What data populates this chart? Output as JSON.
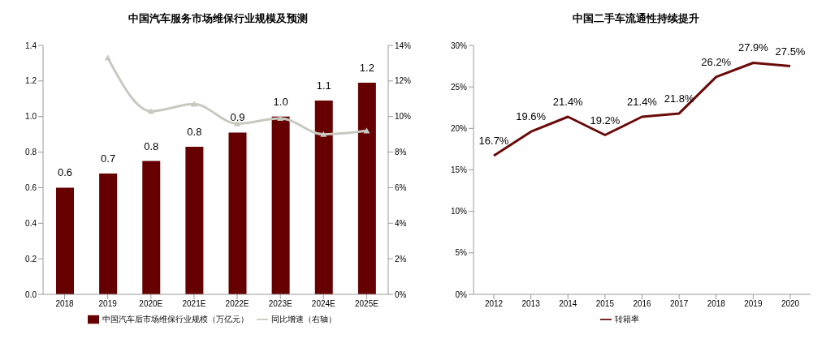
{
  "chart_data": [
    {
      "type": "bar",
      "title": "中国汽车服务市场维保行业规模及预测",
      "categories": [
        "2018",
        "2019",
        "2020E",
        "2021E",
        "2022E",
        "2023E",
        "2024E",
        "2025E"
      ],
      "series": [
        {
          "name": "中国汽车后市场维保行业规模（万亿元）",
          "color": "#660000",
          "values": [
            0.6,
            0.68,
            0.75,
            0.83,
            0.91,
            1.0,
            1.09,
            1.19
          ],
          "value_labels": [
            "0.6",
            "0.7",
            "0.8",
            "0.8",
            "0.9",
            "1.0",
            "1.1",
            "1.2"
          ]
        },
        {
          "name": "同比增速（右轴）",
          "type": "line",
          "axis": "y2",
          "color": "#c8c8c0",
          "marker": "triangle",
          "values": [
            null,
            13.3,
            10.3,
            10.7,
            9.6,
            9.9,
            9.0,
            9.2
          ]
        }
      ],
      "ylim": [
        0,
        1.4
      ],
      "yticks": [
        {
          "value": 0,
          "label": "0.0"
        },
        0.2,
        0.4,
        0.6,
        0.8,
        {
          "value": 1,
          "label": "1.0"
        },
        1.2,
        1.4
      ],
      "y2lim": [
        0,
        14
      ],
      "y2ticks": [
        {
          "value": 0,
          "label": "0%"
        },
        {
          "value": 2,
          "label": "2%"
        },
        {
          "value": 4,
          "label": "4%"
        },
        {
          "value": 6,
          "label": "6%"
        },
        {
          "value": 8,
          "label": "8%"
        },
        {
          "value": 10,
          "label": "10%"
        },
        {
          "value": 12,
          "label": "12%"
        },
        {
          "value": 14,
          "label": "14%"
        }
      ],
      "grid": false,
      "legend": "bottom"
    },
    {
      "type": "line",
      "title": "中国二手车流通性持续提升",
      "categories": [
        "2012",
        "2013",
        "2014",
        "2015",
        "2016",
        "2017",
        "2018",
        "2019",
        "2020"
      ],
      "series": [
        {
          "name": "转籍率",
          "color": "#6b0a0a",
          "values": [
            16.7,
            19.6,
            21.4,
            19.2,
            21.4,
            21.8,
            26.2,
            27.9,
            27.5
          ],
          "value_labels": [
            "16.7%",
            "19.6%",
            "21.4%",
            "19.2%",
            "21.4%",
            "21.8%",
            "26.2%",
            "27.9%",
            "27.5%"
          ]
        }
      ],
      "ylim": [
        0,
        30
      ],
      "yticks": [
        {
          "value": 0,
          "label": "0%"
        },
        {
          "value": 5,
          "label": "5%"
        },
        {
          "value": 10,
          "label": "10%"
        },
        {
          "value": 15,
          "label": "15%"
        },
        {
          "value": 20,
          "label": "20%"
        },
        {
          "value": 25,
          "label": "25%"
        },
        {
          "value": 30,
          "label": "30%"
        }
      ],
      "grid": false,
      "legend": "bottom",
      "marker": "none",
      "line_style": "solid"
    }
  ]
}
